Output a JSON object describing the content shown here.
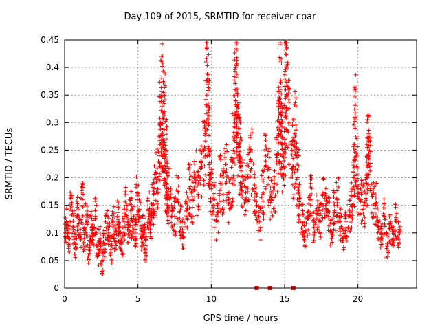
{
  "chart_data": {
    "type": "scatter",
    "title": "Day 109 of 2015, SRMTID for receiver cpar",
    "xlabel": "GPS time / hours",
    "ylabel": "SRMTID / TECUs",
    "xlim": [
      0,
      24
    ],
    "ylim": [
      0,
      0.45
    ],
    "xticks": [
      0,
      5,
      10,
      15,
      20
    ],
    "xtick_labels": [
      "0",
      "5",
      "10",
      "15",
      "20"
    ],
    "yticks": [
      0,
      0.05,
      0.1,
      0.15,
      0.2,
      0.25,
      0.3,
      0.35,
      0.4,
      0.45
    ],
    "ytick_labels": [
      "0",
      "0.05",
      "0.1",
      "0.15",
      "0.2",
      "0.25",
      "0.3",
      "0.35",
      "0.4",
      "0.45"
    ],
    "grid": true,
    "marker": "+",
    "color": "#ff0000",
    "series": [
      {
        "name": "SRMTID",
        "x": [
          0.05,
          0.15,
          0.3,
          0.45,
          0.6,
          0.75,
          0.9,
          1.05,
          1.2,
          1.35,
          1.5,
          1.65,
          1.8,
          1.95,
          2.1,
          2.25,
          2.4,
          2.55,
          2.7,
          2.85,
          3.0,
          3.15,
          3.3,
          3.45,
          3.6,
          3.75,
          3.9,
          4.05,
          4.2,
          4.35,
          4.5,
          4.65,
          4.8,
          4.95,
          5.1,
          5.25,
          5.4,
          5.55,
          5.7,
          5.85,
          6.0,
          6.15,
          6.3,
          6.45,
          6.55,
          6.6,
          6.65,
          6.7,
          6.75,
          6.8,
          6.85,
          6.9,
          6.95,
          7.0,
          7.1,
          7.3,
          7.5,
          7.7,
          7.9,
          8.1,
          8.3,
          8.5,
          8.7,
          8.9,
          9.1,
          9.3,
          9.5,
          9.6,
          9.7,
          9.75,
          9.8,
          9.85,
          9.9,
          10.0,
          10.2,
          10.4,
          10.6,
          10.8,
          11.0,
          11.2,
          11.4,
          11.5,
          11.6,
          11.65,
          11.7,
          11.75,
          11.8,
          11.85,
          11.9,
          12.0,
          12.1,
          12.3,
          12.5,
          12.7,
          12.9,
          13.1,
          13.3,
          13.5,
          13.7,
          13.9,
          14.1,
          14.3,
          14.5,
          14.6,
          14.65,
          14.7,
          14.75,
          14.8,
          14.9,
          15.0,
          15.05,
          15.1,
          15.15,
          15.2,
          15.3,
          15.5,
          15.6,
          15.7,
          15.8,
          15.9,
          16.0,
          16.2,
          16.4,
          16.6,
          16.8,
          17.0,
          17.2,
          17.4,
          17.6,
          17.8,
          18.0,
          18.2,
          18.4,
          18.6,
          18.8,
          19.0,
          19.2,
          19.4,
          19.6,
          19.7,
          19.75,
          19.8,
          19.9,
          20.0,
          20.2,
          20.4,
          20.6,
          20.65,
          20.7,
          20.8,
          21.0,
          21.2,
          21.4,
          21.6,
          21.8,
          22.0,
          22.2,
          22.4,
          22.6,
          22.8,
          13.1,
          14.0,
          15.6
        ],
        "y": [
          0.1,
          0.12,
          0.09,
          0.14,
          0.11,
          0.08,
          0.13,
          0.1,
          0.15,
          0.09,
          0.12,
          0.07,
          0.11,
          0.1,
          0.13,
          0.06,
          0.09,
          0.05,
          0.08,
          0.11,
          0.1,
          0.07,
          0.12,
          0.09,
          0.13,
          0.1,
          0.08,
          0.12,
          0.15,
          0.11,
          0.14,
          0.12,
          0.1,
          0.16,
          0.13,
          0.09,
          0.11,
          0.07,
          0.14,
          0.12,
          0.15,
          0.18,
          0.2,
          0.24,
          0.3,
          0.35,
          0.33,
          0.27,
          0.26,
          0.32,
          0.22,
          0.25,
          0.19,
          0.16,
          0.18,
          0.15,
          0.13,
          0.16,
          0.12,
          0.1,
          0.14,
          0.18,
          0.16,
          0.2,
          0.17,
          0.22,
          0.25,
          0.28,
          0.35,
          0.38,
          0.3,
          0.24,
          0.21,
          0.18,
          0.15,
          0.12,
          0.19,
          0.17,
          0.21,
          0.16,
          0.2,
          0.25,
          0.3,
          0.34,
          0.36,
          0.32,
          0.28,
          0.26,
          0.29,
          0.22,
          0.19,
          0.16,
          0.2,
          0.23,
          0.18,
          0.15,
          0.12,
          0.17,
          0.22,
          0.2,
          0.16,
          0.19,
          0.24,
          0.28,
          0.3,
          0.36,
          0.33,
          0.26,
          0.22,
          0.27,
          0.31,
          0.44,
          0.4,
          0.35,
          0.3,
          0.25,
          0.22,
          0.28,
          0.24,
          0.2,
          0.15,
          0.12,
          0.1,
          0.13,
          0.16,
          0.11,
          0.14,
          0.12,
          0.17,
          0.15,
          0.13,
          0.1,
          0.14,
          0.16,
          0.12,
          0.09,
          0.11,
          0.13,
          0.15,
          0.2,
          0.26,
          0.31,
          0.22,
          0.18,
          0.16,
          0.15,
          0.2,
          0.24,
          0.28,
          0.22,
          0.17,
          0.15,
          0.12,
          0.1,
          0.13,
          0.08,
          0.11,
          0.09,
          0.12,
          0.1,
          0,
          0,
          0
        ]
      }
    ],
    "highlight_points": [
      [
        13.1,
        0
      ],
      [
        14.0,
        0
      ],
      [
        15.6,
        0
      ]
    ]
  }
}
